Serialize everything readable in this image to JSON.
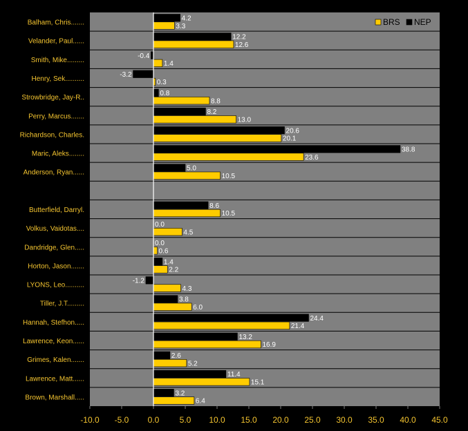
{
  "chart_data": {
    "type": "bar",
    "orientation": "horizontal",
    "categories": [
      "Balham, Chris.......",
      "Velander, Paul......",
      "Smith, Mike.........",
      "Henry, Sek..........",
      "Strowbridge, Jay-R..",
      "Perry, Marcus.......",
      "Richardson, Charles.",
      "Maric, Aleks........",
      "Anderson, Ryan......",
      "",
      "Butterfield, Darryl.",
      "Volkus, Vaidotas....",
      "Dandridge, Glen.....",
      "Horton, Jason.......",
      "LYONS, Leo..........",
      "Tiller, J.T.........",
      "Hannah, Stefhon.....",
      "Lawrence, Keon......",
      "Grimes, Kalen.......",
      "Lawrence, Matt......",
      "Brown, Marshall....."
    ],
    "series": [
      {
        "name": "NEP",
        "color": "#000000",
        "values": [
          4.2,
          12.2,
          -0.4,
          -3.2,
          0.8,
          8.2,
          20.6,
          38.8,
          5.0,
          null,
          8.6,
          0.0,
          0.0,
          1.4,
          -1.2,
          3.8,
          24.4,
          13.2,
          2.6,
          11.4,
          3.2
        ],
        "labels": [
          "4.2",
          "12.2",
          "-0.4",
          "-3.2",
          "0.8",
          "8.2",
          "20.6",
          "38.8",
          "5.0",
          "",
          "8.6",
          "0.0",
          "0.0",
          "1.4",
          "-1.2",
          "3.8",
          "24.4",
          "13.2",
          "2.6",
          "11.4",
          "3.2"
        ]
      },
      {
        "name": "BRS",
        "color": "#ffcc00",
        "values": [
          3.3,
          12.6,
          1.4,
          0.3,
          8.8,
          13.0,
          20.1,
          23.6,
          10.5,
          null,
          10.5,
          4.5,
          0.6,
          2.2,
          4.3,
          6.0,
          21.4,
          16.9,
          5.2,
          15.1,
          6.4
        ],
        "labels": [
          "3.3",
          "12.6",
          "1.4",
          "0.3",
          "8.8",
          "13.0",
          "20.1",
          "23.6",
          "10.5",
          "",
          "10.5",
          "4.5",
          "0.6",
          "2.2",
          "4.3",
          "6.0",
          "21.4",
          "16.9",
          "5.2",
          "15.1",
          "6.4"
        ]
      }
    ],
    "xlim": [
      -10,
      45
    ],
    "xticks": [
      "-10.0",
      "-5.0",
      "0.0",
      "5.0",
      "10.0",
      "15.0",
      "20.0",
      "25.0",
      "30.0",
      "35.0",
      "40.0",
      "45.0"
    ],
    "legend": {
      "position": "top-right",
      "entries": [
        "BRS",
        "NEP"
      ]
    },
    "grid": true,
    "colors": {
      "background": "#000000",
      "plot_area": "#808080",
      "grid": "#000000",
      "zero_line": "#ffffff",
      "label_text": "#f4c430",
      "value_text": "#ffffff"
    }
  }
}
